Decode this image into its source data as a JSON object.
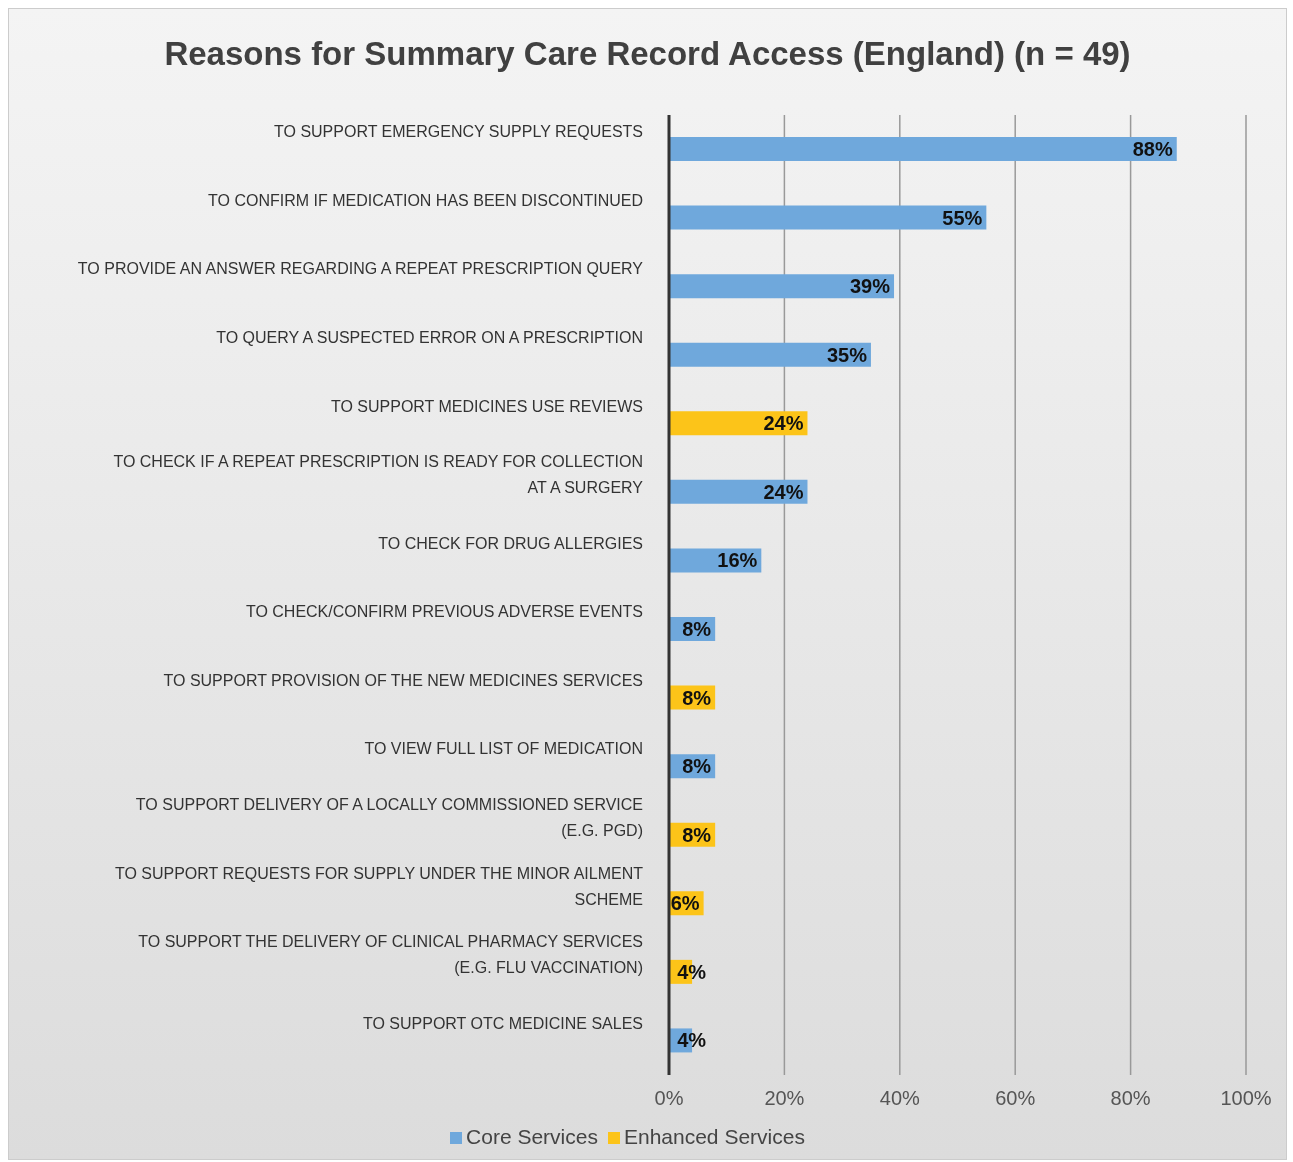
{
  "chart_data": {
    "type": "bar",
    "orientation": "horizontal",
    "stacked": true,
    "title": "Reasons for Summary Care Record Access (England) (n = 49)",
    "categories": [
      "TO SUPPORT EMERGENCY SUPPLY REQUESTS",
      "TO CONFIRM IF MEDICATION HAS BEEN DISCONTINUED",
      "TO PROVIDE AN ANSWER REGARDING A REPEAT PRESCRIPTION QUERY",
      "TO QUERY A SUSPECTED ERROR ON A PRESCRIPTION",
      "TO SUPPORT MEDICINES USE REVIEWS",
      "TO CHECK IF A REPEAT PRESCRIPTION IS READY FOR COLLECTION AT A SURGERY",
      "TO CHECK FOR DRUG ALLERGIES",
      "TO CHECK/CONFIRM PREVIOUS ADVERSE EVENTS",
      "TO SUPPORT PROVISION OF THE NEW MEDICINES SERVICES",
      "TO VIEW FULL LIST OF MEDICATION",
      "TO SUPPORT DELIVERY OF A LOCALLY COMMISSIONED SERVICE (E.G. PGD)",
      "TO SUPPORT REQUESTS FOR SUPPLY UNDER THE MINOR AILMENT SCHEME",
      "TO SUPPORT THE DELIVERY OF CLINICAL PHARMACY SERVICES (E.G. FLU VACCINATION)",
      "TO SUPPORT OTC MEDICINE SALES"
    ],
    "series": [
      {
        "name": "Core Services",
        "color": "#6fa8dc",
        "values": [
          88,
          55,
          39,
          35,
          null,
          24,
          16,
          8,
          null,
          8,
          null,
          null,
          null,
          4
        ],
        "value_labels": [
          "88%",
          "55%",
          "39%",
          "35%",
          null,
          "24%",
          "16%",
          "8%",
          null,
          "8%",
          null,
          null,
          null,
          "4%"
        ]
      },
      {
        "name": "Enhanced Services",
        "color": "#fcc419",
        "values": [
          null,
          null,
          null,
          null,
          24,
          null,
          null,
          null,
          8,
          null,
          8,
          6,
          4,
          null
        ],
        "value_labels": [
          null,
          null,
          null,
          null,
          "24%",
          null,
          null,
          null,
          "8%",
          null,
          "8%",
          "6%",
          "4%",
          null
        ]
      }
    ],
    "xlim": [
      0,
      100
    ],
    "xticks": [
      {
        "value": 0,
        "label": "0%"
      },
      {
        "value": 20,
        "label": "20%"
      },
      {
        "value": 40,
        "label": "40%"
      },
      {
        "value": 60,
        "label": "60%"
      },
      {
        "value": 80,
        "label": "80%"
      },
      {
        "value": 100,
        "label": "100%"
      }
    ],
    "grid": "x",
    "legend": "bottom"
  }
}
